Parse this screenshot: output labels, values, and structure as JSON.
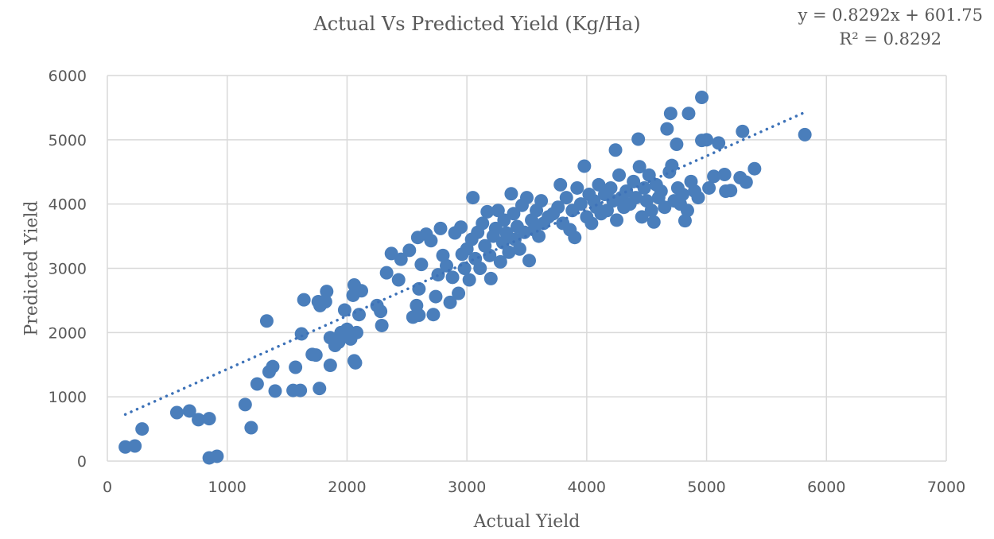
{
  "chart_data": {
    "type": "scatter",
    "title": "Actual Vs Predicted Yield (Kg/Ha)",
    "xlabel": "Actual Yield",
    "ylabel": "Predicted Yield",
    "xlim": [
      0,
      7000
    ],
    "ylim": [
      0,
      6000
    ],
    "xticks": [
      "0",
      "1000",
      "2000",
      "3000",
      "4000",
      "5000",
      "6000",
      "7000"
    ],
    "yticks": [
      "0",
      "1000",
      "2000",
      "3000",
      "4000",
      "5000",
      "6000"
    ],
    "grid": true,
    "legend": "none",
    "marker_color": "#4a7ebb",
    "trendline": {
      "type": "linear",
      "style": "dotted",
      "slope": 0.8292,
      "intercept": 601.75,
      "x_range": [
        150,
        5820
      ],
      "equation": "y = 0.8292x + 601.75",
      "r_squared": "R² = 0.8292"
    },
    "points": [
      [
        150,
        220
      ],
      [
        230,
        235
      ],
      [
        290,
        500
      ],
      [
        580,
        755
      ],
      [
        685,
        780
      ],
      [
        760,
        645
      ],
      [
        850,
        660
      ],
      [
        850,
        50
      ],
      [
        915,
        75
      ],
      [
        1150,
        880
      ],
      [
        1200,
        520
      ],
      [
        1250,
        1200
      ],
      [
        1330,
        2180
      ],
      [
        1350,
        1390
      ],
      [
        1380,
        1470
      ],
      [
        1400,
        1090
      ],
      [
        1550,
        1100
      ],
      [
        1610,
        1100
      ],
      [
        1570,
        1460
      ],
      [
        1620,
        1980
      ],
      [
        1640,
        2510
      ],
      [
        1770,
        1130
      ],
      [
        1710,
        1660
      ],
      [
        1740,
        1650
      ],
      [
        1775,
        2420
      ],
      [
        1860,
        1490
      ],
      [
        1860,
        1920
      ],
      [
        1820,
        2480
      ],
      [
        1830,
        2640
      ],
      [
        1760,
        2480
      ],
      [
        1900,
        1800
      ],
      [
        1930,
        1850
      ],
      [
        1950,
        2000
      ],
      [
        1980,
        2350
      ],
      [
        2000,
        2050
      ],
      [
        2030,
        1900
      ],
      [
        2050,
        2580
      ],
      [
        2060,
        2740
      ],
      [
        2070,
        1530
      ],
      [
        2060,
        1560
      ],
      [
        2080,
        2000
      ],
      [
        2100,
        2280
      ],
      [
        2120,
        2650
      ],
      [
        2250,
        2420
      ],
      [
        2280,
        2330
      ],
      [
        2290,
        2110
      ],
      [
        2330,
        2930
      ],
      [
        2370,
        3230
      ],
      [
        2430,
        2820
      ],
      [
        2450,
        3140
      ],
      [
        2520,
        3280
      ],
      [
        2550,
        2240
      ],
      [
        2580,
        2420
      ],
      [
        2600,
        2270
      ],
      [
        2600,
        2680
      ],
      [
        2590,
        3480
      ],
      [
        2620,
        3060
      ],
      [
        2660,
        3530
      ],
      [
        2700,
        3430
      ],
      [
        2720,
        2280
      ],
      [
        2740,
        2560
      ],
      [
        2760,
        2900
      ],
      [
        2780,
        3620
      ],
      [
        2800,
        3200
      ],
      [
        2830,
        3040
      ],
      [
        2860,
        2470
      ],
      [
        2880,
        2860
      ],
      [
        2900,
        3550
      ],
      [
        2930,
        2610
      ],
      [
        2950,
        3640
      ],
      [
        2960,
        3220
      ],
      [
        2980,
        3000
      ],
      [
        3000,
        3300
      ],
      [
        3020,
        2820
      ],
      [
        3040,
        3450
      ],
      [
        3050,
        4100
      ],
      [
        3070,
        3150
      ],
      [
        3090,
        3560
      ],
      [
        3110,
        3000
      ],
      [
        3130,
        3700
      ],
      [
        3150,
        3350
      ],
      [
        3170,
        3880
      ],
      [
        3190,
        3200
      ],
      [
        3200,
        2840
      ],
      [
        3220,
        3500
      ],
      [
        3240,
        3620
      ],
      [
        3260,
        3900
      ],
      [
        3280,
        3100
      ],
      [
        3300,
        3400
      ],
      [
        3310,
        3750
      ],
      [
        3330,
        3550
      ],
      [
        3350,
        3250
      ],
      [
        3370,
        4160
      ],
      [
        3390,
        3850
      ],
      [
        3400,
        3450
      ],
      [
        3420,
        3650
      ],
      [
        3440,
        3300
      ],
      [
        3460,
        3980
      ],
      [
        3480,
        3560
      ],
      [
        3500,
        4100
      ],
      [
        3520,
        3120
      ],
      [
        3540,
        3750
      ],
      [
        3560,
        3600
      ],
      [
        3580,
        3900
      ],
      [
        3600,
        3500
      ],
      [
        3620,
        4050
      ],
      [
        3640,
        3700
      ],
      [
        3680,
        3800
      ],
      [
        3720,
        3850
      ],
      [
        3760,
        3950
      ],
      [
        3780,
        4300
      ],
      [
        3800,
        3700
      ],
      [
        3830,
        4100
      ],
      [
        3860,
        3600
      ],
      [
        3880,
        3900
      ],
      [
        3900,
        3480
      ],
      [
        3920,
        4250
      ],
      [
        3950,
        4000
      ],
      [
        3980,
        4590
      ],
      [
        4000,
        3800
      ],
      [
        4020,
        4150
      ],
      [
        4040,
        3700
      ],
      [
        4060,
        4050
      ],
      [
        4080,
        3950
      ],
      [
        4100,
        4300
      ],
      [
        4120,
        3850
      ],
      [
        4150,
        4150
      ],
      [
        4170,
        3900
      ],
      [
        4200,
        4250
      ],
      [
        4220,
        4050
      ],
      [
        4240,
        4840
      ],
      [
        4250,
        3750
      ],
      [
        4270,
        4450
      ],
      [
        4290,
        4100
      ],
      [
        4310,
        3950
      ],
      [
        4330,
        4200
      ],
      [
        4360,
        4000
      ],
      [
        4390,
        4350
      ],
      [
        4410,
        4100
      ],
      [
        4430,
        5010
      ],
      [
        4440,
        4580
      ],
      [
        4460,
        3800
      ],
      [
        4480,
        4250
      ],
      [
        4500,
        4050
      ],
      [
        4520,
        4450
      ],
      [
        4540,
        3900
      ],
      [
        4560,
        3720
      ],
      [
        4580,
        4300
      ],
      [
        4600,
        4100
      ],
      [
        4620,
        4200
      ],
      [
        4650,
        3950
      ],
      [
        4670,
        5170
      ],
      [
        4690,
        4500
      ],
      [
        4700,
        5410
      ],
      [
        4710,
        4600
      ],
      [
        4730,
        4050
      ],
      [
        4750,
        4930
      ],
      [
        4760,
        4250
      ],
      [
        4780,
        4000
      ],
      [
        4800,
        4150
      ],
      [
        4820,
        3740
      ],
      [
        4840,
        3900
      ],
      [
        4850,
        5410
      ],
      [
        4870,
        4350
      ],
      [
        4900,
        4200
      ],
      [
        4930,
        4100
      ],
      [
        4960,
        5660
      ],
      [
        4960,
        4990
      ],
      [
        5000,
        5000
      ],
      [
        5020,
        4250
      ],
      [
        5060,
        4430
      ],
      [
        5100,
        4950
      ],
      [
        5150,
        4460
      ],
      [
        5160,
        4200
      ],
      [
        5200,
        4210
      ],
      [
        5280,
        4410
      ],
      [
        5300,
        5130
      ],
      [
        5330,
        4340
      ],
      [
        5400,
        4550
      ],
      [
        5820,
        5080
      ]
    ]
  }
}
